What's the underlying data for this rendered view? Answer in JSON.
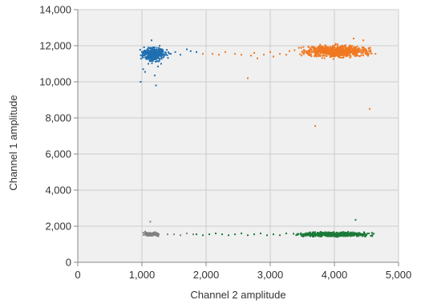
{
  "chart_data": {
    "type": "scatter",
    "title": "",
    "xlabel": "Channel 2 amplitude",
    "ylabel": "Channel 1 amplitude",
    "xlim": [
      0,
      5000
    ],
    "ylim": [
      0,
      14000
    ],
    "xticks": [
      0,
      1000,
      2000,
      3000,
      4000,
      5000
    ],
    "xtick_labels": [
      "0",
      "1,000",
      "2,000",
      "3,000",
      "4,000",
      "5,000"
    ],
    "yticks": [
      0,
      2000,
      4000,
      6000,
      8000,
      10000,
      12000,
      14000
    ],
    "ytick_labels": [
      "0",
      "2,000",
      "4,000",
      "6,000",
      "8,000",
      "10,000",
      "12,000",
      "14,000"
    ],
    "grid": true,
    "legend": "none",
    "colors": {
      "plot_background": "#f0f0f0",
      "grid": "#cccccc"
    },
    "series": [
      {
        "color": "#1f6fb0",
        "clusters": [
          {
            "x_range": [
              950,
              1420
            ],
            "y_range": [
              11050,
              12000
            ],
            "count": 340
          }
        ],
        "points": [
          [
            1150,
            12300
          ],
          [
            1020,
            10700
          ],
          [
            1200,
            10350
          ],
          [
            980,
            10000
          ],
          [
            1220,
            9800
          ],
          [
            1300,
            11000
          ],
          [
            1450,
            11550
          ],
          [
            1520,
            11650
          ],
          [
            1600,
            11500
          ],
          [
            1700,
            11800
          ],
          [
            1760,
            11700
          ],
          [
            1850,
            11650
          ],
          [
            1100,
            11000
          ],
          [
            1250,
            10850
          ],
          [
            1050,
            10550
          ]
        ]
      },
      {
        "color": "#f07820",
        "clusters": [
          {
            "x_range": [
              3350,
              4700
            ],
            "y_range": [
              11250,
              12150
            ],
            "count": 750
          }
        ],
        "points": [
          [
            1950,
            11550
          ],
          [
            2100,
            11550
          ],
          [
            2200,
            11500
          ],
          [
            2300,
            11650
          ],
          [
            2450,
            11550
          ],
          [
            2550,
            11500
          ],
          [
            2650,
            10200
          ],
          [
            2700,
            11450
          ],
          [
            2750,
            11600
          ],
          [
            2800,
            11300
          ],
          [
            2900,
            11500
          ],
          [
            3000,
            11650
          ],
          [
            3050,
            11400
          ],
          [
            3150,
            11550
          ],
          [
            3250,
            11500
          ],
          [
            3300,
            11700
          ],
          [
            3700,
            7550
          ],
          [
            4550,
            8500
          ],
          [
            4450,
            12300
          ],
          [
            4300,
            12400
          ]
        ]
      },
      {
        "color": "#808080",
        "clusters": [
          {
            "x_range": [
              980,
              1320
            ],
            "y_range": [
              1430,
              1690
            ],
            "count": 130
          }
        ],
        "points": [
          [
            1130,
            2250
          ],
          [
            1400,
            1550
          ],
          [
            1500,
            1550
          ],
          [
            1600,
            1500
          ],
          [
            1700,
            1600
          ],
          [
            1800,
            1550
          ],
          [
            1050,
            1700
          ]
        ]
      },
      {
        "color": "#1e7a3a",
        "clusters": [
          {
            "x_range": [
              3300,
              4700
            ],
            "y_range": [
              1400,
              1700
            ],
            "count": 700
          }
        ],
        "points": [
          [
            1850,
            1550
          ],
          [
            1950,
            1500
          ],
          [
            2050,
            1550
          ],
          [
            2150,
            1600
          ],
          [
            2250,
            1550
          ],
          [
            2350,
            1500
          ],
          [
            2450,
            1550
          ],
          [
            2550,
            1600
          ],
          [
            2650,
            1500
          ],
          [
            2750,
            1550
          ],
          [
            2850,
            1600
          ],
          [
            2950,
            1500
          ],
          [
            3050,
            1550
          ],
          [
            3150,
            1500
          ],
          [
            3250,
            1600
          ],
          [
            4330,
            2350
          ]
        ]
      }
    ]
  }
}
